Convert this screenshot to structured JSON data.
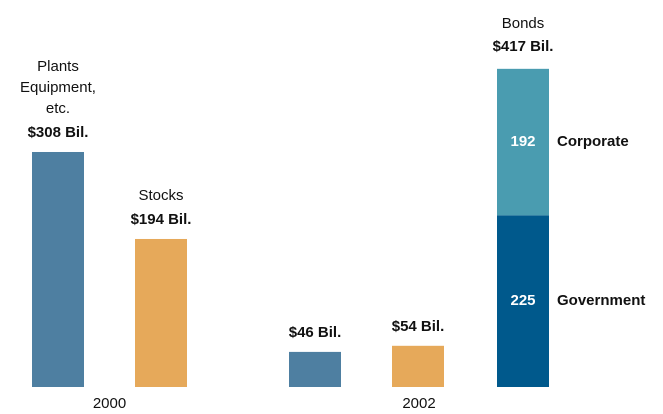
{
  "chart_data": {
    "type": "bar",
    "groups": [
      {
        "label": "2000",
        "bars": [
          {
            "name": [
              "Plants",
              "Equipment,",
              "etc."
            ],
            "value": 308,
            "value_label": "$308 Bil.",
            "color": "#4e7fa1"
          },
          {
            "name": [
              "Stocks"
            ],
            "value": 194,
            "value_label": "$194 Bil.",
            "color": "#e6a95a"
          }
        ]
      },
      {
        "label": "2002",
        "bars": [
          {
            "value": 46,
            "value_label": "$46 Bil.",
            "color": "#4e7fa1"
          },
          {
            "value": 54,
            "value_label": "$54 Bil.",
            "color": "#e6a95a"
          },
          {
            "name": [
              "Bonds"
            ],
            "total": 417,
            "total_label": "$417 Bil.",
            "segments": [
              {
                "name": "Government",
                "value": 225,
                "color": "#00598c"
              },
              {
                "name": "Corporate",
                "value": 192,
                "color": "#4a9cb0"
              }
            ]
          }
        ]
      }
    ]
  }
}
